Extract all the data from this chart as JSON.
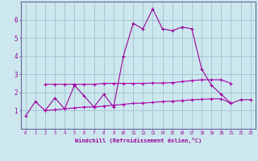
{
  "xlabel": "Windchill (Refroidissement éolien,°C)",
  "background_color": "#cce8ee",
  "grid_color": "#99bbcc",
  "line_color1": "#990099",
  "line_color2": "#aa00aa",
  "x_hours": [
    0,
    1,
    2,
    3,
    4,
    5,
    6,
    7,
    8,
    9,
    10,
    11,
    12,
    13,
    14,
    15,
    16,
    17,
    18,
    19,
    20,
    21,
    22,
    23
  ],
  "line1": [
    0.7,
    1.5,
    1.0,
    1.7,
    1.1,
    2.4,
    1.8,
    1.2,
    1.9,
    1.2,
    4.0,
    5.8,
    5.5,
    6.6,
    5.5,
    5.4,
    5.6,
    5.5,
    3.3,
    2.4,
    1.9,
    1.4,
    1.6,
    1.6
  ],
  "line2": [
    null,
    null,
    2.45,
    2.45,
    2.45,
    2.45,
    2.45,
    2.45,
    2.5,
    2.5,
    2.5,
    2.5,
    2.5,
    2.52,
    2.52,
    2.54,
    2.6,
    2.65,
    2.7,
    2.7,
    2.7,
    2.5,
    null,
    null
  ],
  "line3": [
    null,
    null,
    1.0,
    1.05,
    1.1,
    1.15,
    1.2,
    1.2,
    1.25,
    1.3,
    1.35,
    1.4,
    1.42,
    1.45,
    1.5,
    1.52,
    1.55,
    1.6,
    1.62,
    1.65,
    1.65,
    1.4,
    null,
    null
  ],
  "ylim": [
    0,
    7
  ],
  "xlim": [
    -0.5,
    23.5
  ]
}
